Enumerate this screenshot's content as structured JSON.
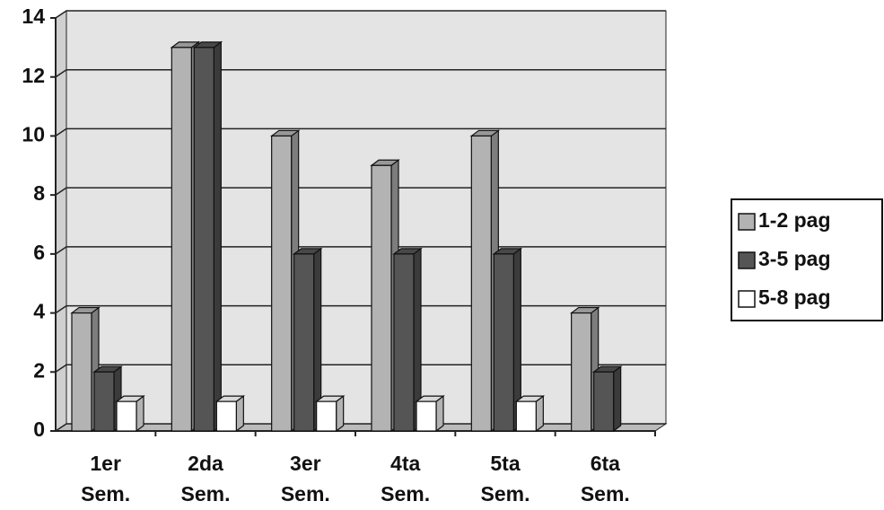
{
  "chart_data": {
    "type": "bar3d",
    "categories": [
      "1er Sem.",
      "2da Sem.",
      "3er Sem.",
      "4ta Sem.",
      "5ta Sem.",
      "6ta Sem."
    ],
    "series": [
      {
        "name": "1-2 pag",
        "color": "#b3b3b3",
        "values": [
          4,
          13,
          10,
          9,
          10,
          4
        ]
      },
      {
        "name": "3-5 pag",
        "color": "#555555",
        "values": [
          2,
          13,
          6,
          6,
          6,
          2
        ]
      },
      {
        "name": "5-8 pag",
        "color": "#ffffff",
        "values": [
          1,
          1,
          1,
          1,
          1,
          0
        ]
      }
    ],
    "ylim": [
      0,
      14
    ],
    "yticks": [
      0,
      2,
      4,
      6,
      8,
      10,
      12,
      14
    ],
    "grid": true,
    "legend": "right"
  }
}
